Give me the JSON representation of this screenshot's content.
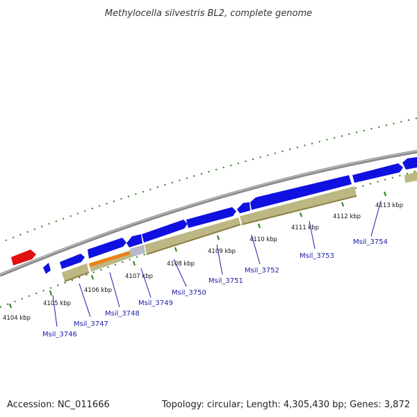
{
  "title": "Methylocella silvestris BL2, complete genome",
  "accession": "Accession: NC_011666",
  "summary": "Topology: circular; Length: 4,305,430 bp; Genes: 3,872",
  "colors": {
    "backbone": "#8a8a8a",
    "tick": "#2b7a1a",
    "cds_forward": "#1010e0",
    "cds_highlight": "#f08010",
    "cds_other": "#b8b8c8",
    "rna": "#e01010",
    "feature_band": "#bdb784",
    "label": "#1a1aa8"
  },
  "kbp_labels": [
    "4104 kbp",
    "4105 kbp",
    "4106 kbp",
    "4107 kbp",
    "4108 kbp",
    "4109 kbp",
    "4110 kbp",
    "4111 kbp",
    "4112 kbp",
    "4113 kbp"
  ],
  "gene_labels": [
    "Msil_3746",
    "Msil_3747",
    "Msil_3748",
    "Msil_3749",
    "Msil_3750",
    "Msil_3751",
    "Msil_3752",
    "Msil_3753",
    "Msil_3754"
  ]
}
